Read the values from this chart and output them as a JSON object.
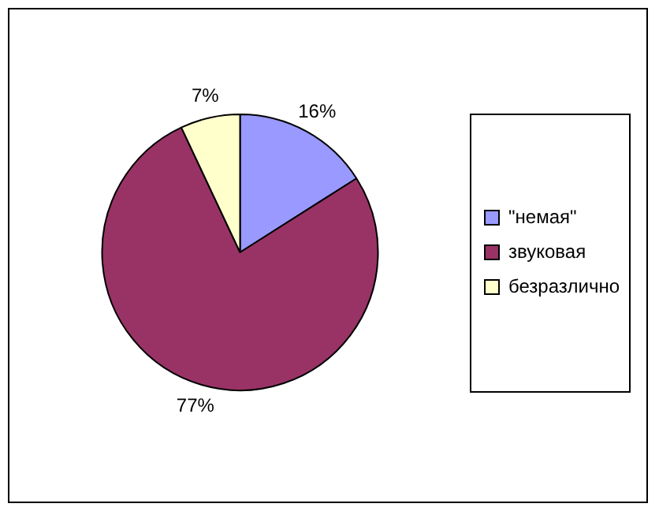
{
  "chart_data": {
    "type": "pie",
    "categories": [
      "\"немая\"",
      "звуковая",
      "безразлично"
    ],
    "values": [
      16,
      77,
      7
    ],
    "colors": [
      "#9999ff",
      "#993366",
      "#ffffcc"
    ],
    "value_labels": [
      "16%",
      "77%",
      "7%"
    ],
    "legend": "right"
  }
}
